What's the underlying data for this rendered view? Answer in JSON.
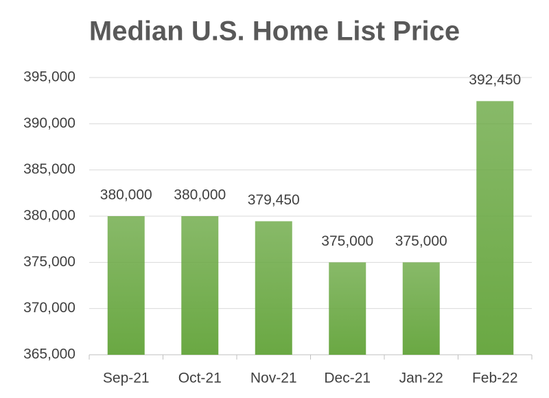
{
  "chart_data": {
    "type": "bar",
    "title": "Median U.S. Home List Price",
    "categories": [
      "Sep-21",
      "Oct-21",
      "Nov-21",
      "Dec-21",
      "Jan-22",
      "Feb-22"
    ],
    "values": [
      380000,
      380000,
      379450,
      375000,
      375000,
      392450
    ],
    "value_labels": [
      "380,000",
      "380,000",
      "379,450",
      "375,000",
      "375,000",
      "392,450"
    ],
    "color": "#6aa843",
    "ylim": [
      365000,
      395000
    ],
    "yticks": [
      {
        "value": 365000,
        "label": "365,000"
      },
      {
        "value": 370000,
        "label": "370,000"
      },
      {
        "value": 375000,
        "label": "375,000"
      },
      {
        "value": 380000,
        "label": "380,000"
      },
      {
        "value": 385000,
        "label": "385,000"
      },
      {
        "value": 390000,
        "label": "390,000"
      },
      {
        "value": 395000,
        "label": "395,000"
      }
    ],
    "grid": true
  }
}
